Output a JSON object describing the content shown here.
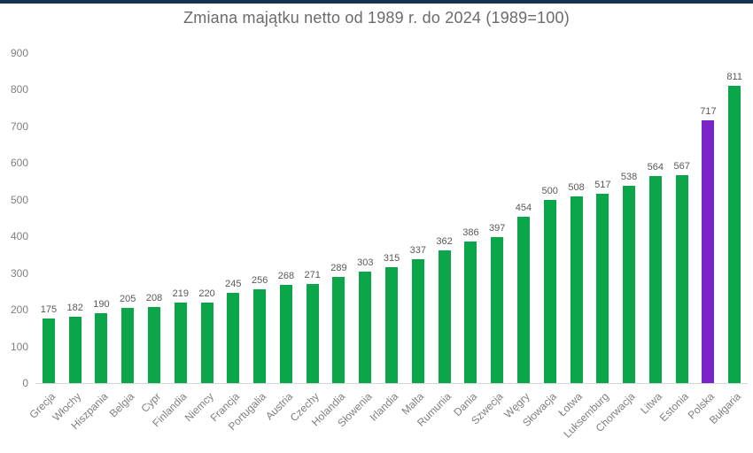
{
  "topbar": {
    "color": "#15334F"
  },
  "chart_data": {
    "type": "bar",
    "title": "Zmiana majątku netto od 1989 r. do 2024 (1989=100)",
    "categories": [
      "Grecja",
      "Włochy",
      "Hiszpania",
      "Belgia",
      "Cypr",
      "Finlandia",
      "Niemcy",
      "Francja",
      "Portugalia",
      "Austria",
      "Czechy",
      "Holandia",
      "Słowenia",
      "Irlandia",
      "Malta",
      "Rumunia",
      "Dania",
      "Szwecja",
      "Węgry",
      "Słowacja",
      "Łotwa",
      "Luksemburg",
      "Chorwacja",
      "Litwa",
      "Estonia",
      "Polska",
      "Bułgaria"
    ],
    "values": [
      175,
      182,
      190,
      205,
      208,
      219,
      220,
      245,
      256,
      268,
      271,
      289,
      303,
      315,
      337,
      362,
      386,
      397,
      454,
      500,
      508,
      517,
      538,
      564,
      567,
      717,
      811
    ],
    "value_labels": true,
    "xlabel": "",
    "ylabel": "",
    "ylim": [
      0,
      900
    ],
    "y_ticks": [
      0,
      100,
      200,
      300,
      400,
      500,
      600,
      700,
      800,
      900
    ],
    "grid": false,
    "legend": false,
    "default_bar_color": "#0CA64A",
    "highlight": {
      "category": "Polska",
      "color": "#7B24C8"
    },
    "title_color": "#6b6b6b",
    "axis_label_color": "#7f7f7f",
    "value_label_color": "#595959",
    "axis_line_color": "#d9d9d9"
  }
}
